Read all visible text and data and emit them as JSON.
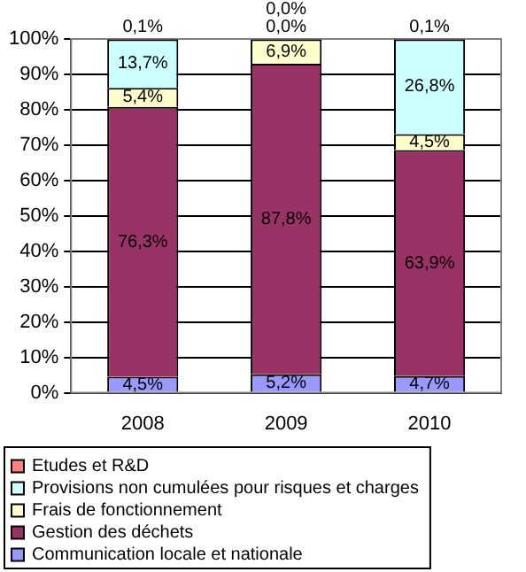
{
  "chart_data": {
    "type": "bar",
    "stacked": true,
    "categories": [
      "2008",
      "2009",
      "2010"
    ],
    "series": [
      {
        "name": "Communication locale et nationale",
        "color": "#9999ff",
        "values": [
          4.5,
          5.2,
          4.7
        ],
        "value_labels": [
          "4,5%",
          "5,2%",
          "4,7%"
        ]
      },
      {
        "name": "Gestion des déchets",
        "color": "#993366",
        "values": [
          76.3,
          87.8,
          63.9
        ],
        "value_labels": [
          "76,3%",
          "87,8%",
          "63,9%"
        ]
      },
      {
        "name": "Frais de fonctionnement",
        "color": "#ffffcc",
        "values": [
          5.4,
          6.9,
          4.5
        ],
        "value_labels": [
          "5,4%",
          "6,9%",
          "4,5%"
        ]
      },
      {
        "name": "Provisions non cumulées pour risques et charges",
        "color": "#ccffff",
        "values": [
          13.7,
          0.0,
          26.8
        ],
        "value_labels": [
          "13,7%",
          "0,0%",
          "26,8%"
        ]
      },
      {
        "name": "Etudes et R&D",
        "color": "#ff8080",
        "values": [
          0.1,
          0.0,
          0.1
        ],
        "value_labels": [
          "0,1%",
          "0,0%",
          "0,1%"
        ]
      }
    ],
    "ylim": [
      0,
      100
    ],
    "yticks": [
      {
        "value": 0,
        "label": "0%"
      },
      {
        "value": 10,
        "label": "10%"
      },
      {
        "value": 20,
        "label": "20%"
      },
      {
        "value": 30,
        "label": "30%"
      },
      {
        "value": 40,
        "label": "40%"
      },
      {
        "value": 50,
        "label": "50%"
      },
      {
        "value": 60,
        "label": "60%"
      },
      {
        "value": 70,
        "label": "70%"
      },
      {
        "value": 80,
        "label": "80%"
      },
      {
        "value": 90,
        "label": "90%"
      },
      {
        "value": 100,
        "label": "100%"
      }
    ],
    "grid": "y",
    "legend": "bottom"
  }
}
